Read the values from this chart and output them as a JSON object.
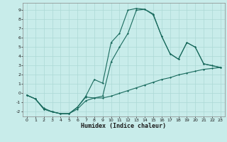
{
  "xlabel": "Humidex (Indice chaleur)",
  "bg_color": "#c8ecea",
  "grid_color": "#acd8d5",
  "line_color": "#1a6b5e",
  "xlim": [
    -0.5,
    23.5
  ],
  "ylim": [
    -2.5,
    9.8
  ],
  "xticks": [
    0,
    1,
    2,
    3,
    4,
    5,
    6,
    7,
    8,
    9,
    10,
    11,
    12,
    13,
    14,
    15,
    16,
    17,
    18,
    19,
    20,
    21,
    22,
    23
  ],
  "yticks": [
    -2,
    -1,
    0,
    1,
    2,
    3,
    4,
    5,
    6,
    7,
    8,
    9
  ],
  "line1_x": [
    0,
    1,
    2,
    3,
    4,
    5,
    6,
    7,
    8,
    9,
    10,
    11,
    12,
    13,
    14,
    15,
    16,
    17,
    18,
    19,
    20,
    21,
    22,
    23
  ],
  "line1_y": [
    -0.2,
    -0.6,
    -1.7,
    -2.0,
    -2.2,
    -2.2,
    -1.7,
    -0.8,
    -0.5,
    -0.5,
    -0.3,
    0.0,
    0.3,
    0.6,
    0.9,
    1.2,
    1.5,
    1.7,
    2.0,
    2.2,
    2.4,
    2.6,
    2.7,
    2.8
  ],
  "line2_x": [
    0,
    1,
    2,
    3,
    4,
    5,
    6,
    7,
    8,
    9,
    10,
    11,
    12,
    13,
    14,
    15,
    16,
    17,
    18,
    19,
    20,
    21,
    22,
    23
  ],
  "line2_y": [
    -0.2,
    -0.6,
    -1.6,
    -2.0,
    -2.2,
    -2.2,
    -1.5,
    -0.3,
    1.5,
    1.1,
    5.5,
    6.5,
    9.0,
    9.2,
    9.1,
    8.5,
    6.2,
    4.3,
    3.7,
    5.5,
    5.0,
    3.2,
    3.0,
    2.8
  ],
  "line3_x": [
    0,
    1,
    2,
    3,
    4,
    5,
    6,
    7,
    8,
    9,
    10,
    11,
    12,
    13,
    14,
    15,
    16,
    17,
    18,
    19,
    20,
    21,
    22,
    23
  ],
  "line3_y": [
    -0.2,
    -0.6,
    -1.7,
    -2.0,
    -2.2,
    -2.2,
    -1.5,
    -0.4,
    -0.5,
    -0.3,
    3.4,
    5.0,
    6.5,
    9.0,
    9.1,
    8.6,
    6.2,
    4.3,
    3.7,
    5.5,
    5.0,
    3.2,
    3.0,
    2.8
  ]
}
